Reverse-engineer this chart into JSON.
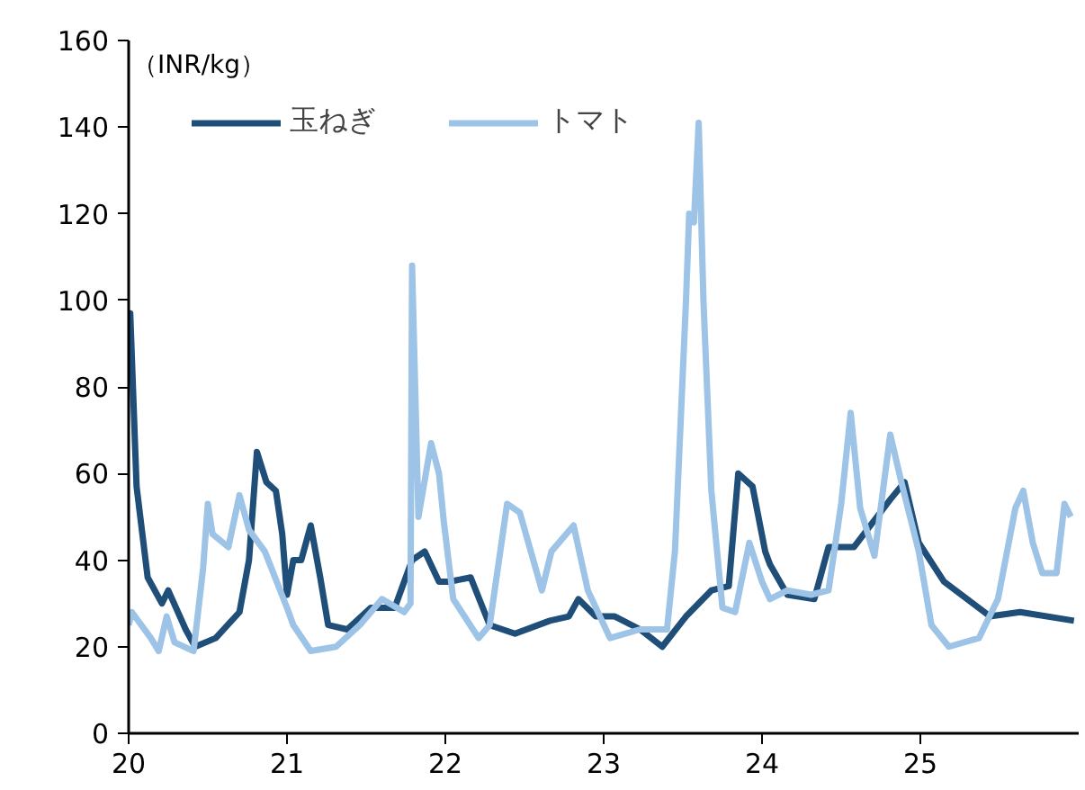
{
  "chart_data": {
    "type": "line",
    "ylabel": "（INR/kg）",
    "xlim": [
      20,
      26
    ],
    "xticks": [
      20,
      21,
      22,
      23,
      24,
      25
    ],
    "ylim": [
      0,
      160
    ],
    "yticks": [
      0,
      20,
      40,
      60,
      80,
      100,
      120,
      140,
      160
    ],
    "grid": false,
    "legend": "top left",
    "marker": "none",
    "line_style": "solid",
    "series": [
      {
        "name": "玉ねぎ",
        "color": "#1f4e79",
        "x": [
          20.0,
          20.01,
          20.05,
          20.12,
          20.21,
          20.25,
          20.36,
          20.42,
          20.55,
          20.7,
          20.76,
          20.81,
          20.87,
          20.93,
          20.97,
          21.0,
          21.04,
          21.09,
          21.15,
          21.21,
          21.26,
          21.38,
          21.53,
          21.68,
          21.79,
          21.87,
          21.96,
          22.02,
          22.16,
          22.28,
          22.44,
          22.66,
          22.78,
          22.84,
          22.95,
          23.07,
          23.23,
          23.37,
          23.52,
          23.68,
          23.79,
          23.85,
          23.94,
          24.02,
          24.05,
          24.16,
          24.33,
          24.42,
          24.58,
          24.81,
          24.9,
          24.99,
          25.15,
          25.44,
          25.63,
          25.97
        ],
        "values": [
          95,
          97,
          57,
          36,
          30,
          33,
          24,
          20,
          22,
          28,
          40,
          65,
          58,
          56,
          46,
          32,
          40,
          40,
          48,
          36,
          25,
          24,
          29,
          29,
          40,
          42,
          35,
          35,
          36,
          25,
          23,
          26,
          27,
          31,
          27,
          27,
          24,
          20,
          27,
          33,
          34,
          60,
          57,
          42,
          39,
          32,
          31,
          43,
          43,
          54,
          58,
          44,
          35,
          27,
          28,
          26
        ]
      },
      {
        "name": "トマト",
        "color": "#9dc3e6",
        "x": [
          20.0,
          20.02,
          20.14,
          20.19,
          20.24,
          20.29,
          20.41,
          20.47,
          20.5,
          20.53,
          20.63,
          20.7,
          20.76,
          20.86,
          21.0,
          21.04,
          21.15,
          21.31,
          21.46,
          21.6,
          21.74,
          21.78,
          21.79,
          21.83,
          21.91,
          21.96,
          21.99,
          22.05,
          22.21,
          22.28,
          22.39,
          22.47,
          22.61,
          22.67,
          22.81,
          22.9,
          23.04,
          23.23,
          23.4,
          23.45,
          23.52,
          23.54,
          23.57,
          23.6,
          23.63,
          23.68,
          23.75,
          23.83,
          23.92,
          24.0,
          24.05,
          24.16,
          24.31,
          24.42,
          24.5,
          24.56,
          24.62,
          24.71,
          24.81,
          24.88,
          24.99,
          25.07,
          25.18,
          25.37,
          25.49,
          25.6,
          25.65,
          25.71,
          25.77,
          25.86,
          25.91,
          25.95
        ],
        "values": [
          25,
          28,
          22,
          19,
          27,
          21,
          19,
          38,
          53,
          46,
          43,
          55,
          47,
          42,
          29,
          25,
          19,
          20,
          25,
          31,
          28,
          30,
          108,
          50,
          67,
          60,
          49,
          31,
          22,
          25,
          53,
          51,
          33,
          42,
          48,
          33,
          22,
          24,
          24,
          42,
          100,
          120,
          118,
          141,
          100,
          56,
          29,
          28,
          44,
          35,
          31,
          33,
          32,
          33,
          53,
          74,
          52,
          41,
          69,
          58,
          42,
          25,
          20,
          22,
          31,
          52,
          56,
          44,
          37,
          37,
          53,
          50
        ]
      }
    ]
  }
}
